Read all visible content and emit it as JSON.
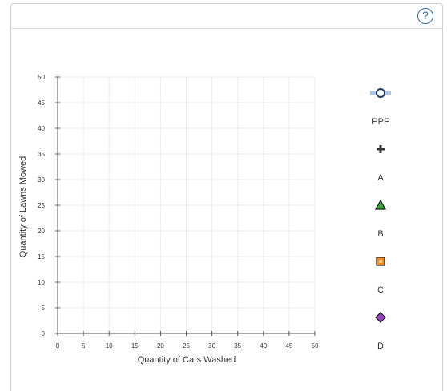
{
  "help": {
    "label": "?"
  },
  "chart_data": {
    "type": "scatter",
    "xlabel": "Quantity of Cars Washed",
    "ylabel": "Quantity of Lawns Mowed",
    "xlim": [
      0,
      50
    ],
    "ylim": [
      0,
      50
    ],
    "xticks": [
      0,
      5,
      10,
      15,
      20,
      25,
      30,
      35,
      40,
      45,
      50
    ],
    "yticks": [
      0,
      5,
      10,
      15,
      20,
      25,
      30,
      35,
      40,
      45,
      50
    ],
    "grid": true,
    "series": []
  },
  "legend": [
    {
      "name": "PPF",
      "icon": "line-circle-icon",
      "color": "#1f3a5f",
      "line_color": "#a9c6e8"
    },
    {
      "name": "A",
      "icon": "plus-icon",
      "color": "#333333"
    },
    {
      "name": "B",
      "icon": "triangle-icon",
      "color": "#33aa33"
    },
    {
      "name": "C",
      "icon": "square-icon",
      "color": "#f28c1c"
    },
    {
      "name": "D",
      "icon": "diamond-icon",
      "color": "#9b3fc4"
    }
  ]
}
